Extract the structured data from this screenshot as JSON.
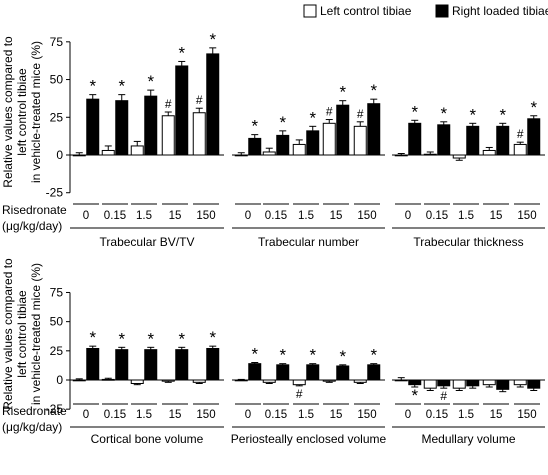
{
  "legend": {
    "items": [
      {
        "label": "Left control tibiae",
        "color": "#ffffff"
      },
      {
        "label": "Right loaded tibiae",
        "color": "#000000"
      }
    ],
    "placement": "top-right"
  },
  "ylabel_lines": [
    "Relative values compared to",
    "left control tibiae",
    "in vehicle-treated mice (%)"
  ],
  "xaxis_title_lines": [
    "Risedronate",
    "(μg/kg/day)"
  ],
  "doses": [
    "0",
    "0.15",
    "1.5",
    "15",
    "150"
  ],
  "chart_data": [
    {
      "type": "bar",
      "panel": "top",
      "title": "Trabecular BV/TV",
      "categories": [
        "0",
        "0.15",
        "1.5",
        "15",
        "150"
      ],
      "ylim": [
        -25,
        75
      ],
      "yticks": [
        -25,
        0,
        25,
        50,
        75
      ],
      "series": [
        {
          "name": "Left control tibiae",
          "values": [
            0,
            3,
            6,
            26,
            28
          ],
          "errors": [
            1.5,
            3,
            3,
            2.5,
            3
          ],
          "marks": [
            "",
            "",
            "",
            "#",
            "#"
          ]
        },
        {
          "name": "Right loaded tibiae",
          "values": [
            37,
            36,
            39,
            59,
            67
          ],
          "errors": [
            3,
            4,
            4,
            3,
            4
          ],
          "marks": [
            "*",
            "*",
            "*",
            "*",
            "*"
          ]
        }
      ]
    },
    {
      "type": "bar",
      "panel": "top",
      "title": "Trabecular number",
      "categories": [
        "0",
        "0.15",
        "1.5",
        "15",
        "150"
      ],
      "ylim": [
        -25,
        75
      ],
      "series": [
        {
          "name": "Left control tibiae",
          "values": [
            0,
            2,
            7,
            21,
            19
          ],
          "errors": [
            1.5,
            2.5,
            3,
            2.5,
            3
          ],
          "marks": [
            "",
            "",
            "",
            "#",
            "#"
          ]
        },
        {
          "name": "Right loaded tibiae",
          "values": [
            11,
            13,
            16,
            33,
            34
          ],
          "errors": [
            2.5,
            3,
            3,
            3,
            3
          ],
          "marks": [
            "*",
            "*",
            "*",
            "*",
            "*"
          ]
        }
      ]
    },
    {
      "type": "bar",
      "panel": "top",
      "title": "Trabecular thickness",
      "categories": [
        "0",
        "0.15",
        "1.5",
        "15",
        "150"
      ],
      "ylim": [
        -25,
        75
      ],
      "series": [
        {
          "name": "Left control tibiae",
          "values": [
            0,
            0.5,
            -2,
            3,
            7
          ],
          "errors": [
            1,
            1.5,
            1.5,
            2,
            1.5
          ],
          "marks": [
            "",
            "",
            "",
            "",
            "#"
          ]
        },
        {
          "name": "Right loaded tibiae",
          "values": [
            21,
            20,
            19,
            19,
            24
          ],
          "errors": [
            2,
            2,
            2,
            2,
            2
          ],
          "marks": [
            "*",
            "*",
            "*",
            "*",
            "*"
          ]
        }
      ]
    },
    {
      "type": "bar",
      "panel": "bottom",
      "title": "Cortical bone volume",
      "categories": [
        "0",
        "0.15",
        "1.5",
        "15",
        "150"
      ],
      "ylim": [
        -25,
        75
      ],
      "yticks": [
        -25,
        0,
        25,
        50,
        75
      ],
      "series": [
        {
          "name": "Left control tibiae",
          "values": [
            0,
            0.5,
            -3,
            -1,
            -2
          ],
          "errors": [
            1,
            1,
            1,
            1,
            1
          ],
          "marks": [
            "",
            "",
            "",
            "",
            ""
          ]
        },
        {
          "name": "Right loaded tibiae",
          "values": [
            27,
            26,
            26,
            26,
            27
          ],
          "errors": [
            2,
            2,
            2,
            2,
            2
          ],
          "marks": [
            "*",
            "*",
            "*",
            "*",
            "*"
          ]
        }
      ]
    },
    {
      "type": "bar",
      "panel": "bottom",
      "title": "Periosteally enclosed volume",
      "categories": [
        "0",
        "0.15",
        "1.5",
        "15",
        "150"
      ],
      "ylim": [
        -25,
        75
      ],
      "series": [
        {
          "name": "Left control tibiae",
          "values": [
            0,
            -2,
            -4,
            -1,
            -2
          ],
          "errors": [
            0.5,
            1,
            1,
            1,
            1
          ],
          "marks": [
            "",
            "",
            "#",
            "",
            ""
          ]
        },
        {
          "name": "Right loaded tibiae",
          "values": [
            14,
            13,
            13,
            12,
            13
          ],
          "errors": [
            1,
            1,
            1,
            1,
            1
          ],
          "marks": [
            "*",
            "*",
            "*",
            "*",
            "*"
          ]
        }
      ]
    },
    {
      "type": "bar",
      "panel": "bottom",
      "title": "Medullary volume",
      "categories": [
        "0",
        "0.15",
        "1.5",
        "15",
        "150"
      ],
      "ylim": [
        -25,
        75
      ],
      "series": [
        {
          "name": "Left control tibiae",
          "values": [
            0,
            -7,
            -7,
            -4,
            -4
          ],
          "errors": [
            2,
            2,
            2,
            2,
            2
          ],
          "marks": [
            "",
            "",
            "",
            "",
            ""
          ]
        },
        {
          "name": "Right loaded tibiae",
          "values": [
            -4,
            -5,
            -5,
            -8,
            -7
          ],
          "errors": [
            2,
            2,
            2,
            2,
            2
          ],
          "marks": [
            "*",
            "#",
            "",
            "",
            ""
          ]
        }
      ]
    }
  ]
}
